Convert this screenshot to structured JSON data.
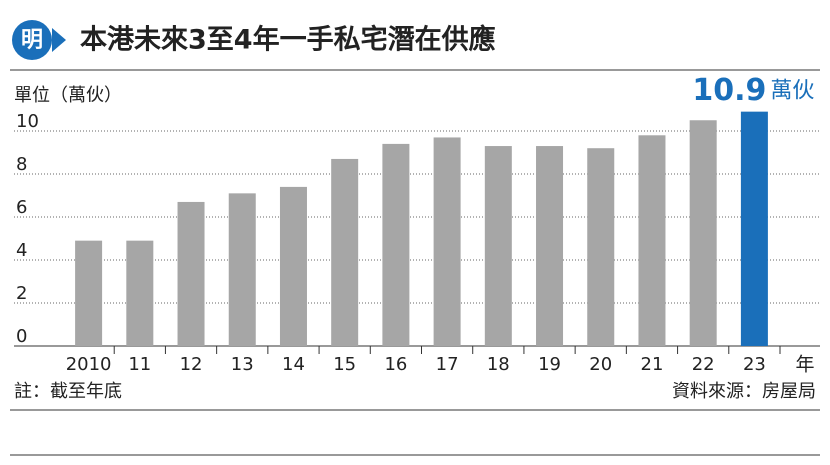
{
  "chart_data": {
    "type": "bar",
    "title": "本港未來3至4年一手私宅潛在供應",
    "logo": "明",
    "y_label": "單位（萬伙）",
    "x_unit": "年",
    "categories": [
      "2010",
      "11",
      "12",
      "13",
      "14",
      "15",
      "16",
      "17",
      "18",
      "19",
      "20",
      "21",
      "22",
      "23"
    ],
    "values": [
      4.9,
      4.9,
      6.7,
      7.1,
      7.4,
      8.7,
      9.4,
      9.7,
      9.3,
      9.3,
      9.2,
      9.8,
      10.5,
      10.9
    ],
    "colors": [
      "#a6a6a6",
      "#a6a6a6",
      "#a6a6a6",
      "#a6a6a6",
      "#a6a6a6",
      "#a6a6a6",
      "#a6a6a6",
      "#a6a6a6",
      "#a6a6a6",
      "#a6a6a6",
      "#a6a6a6",
      "#a6a6a6",
      "#a6a6a6",
      "#1a6fba"
    ],
    "value_labels": [
      null,
      null,
      null,
      null,
      null,
      null,
      null,
      null,
      null,
      null,
      null,
      null,
      null,
      "10.9"
    ],
    "value_label_unit": "萬伙",
    "ylim": [
      0,
      11
    ],
    "yticks": [
      0,
      2,
      4,
      6,
      8,
      10
    ],
    "grid": true,
    "note": "註：截至年底",
    "source": "資料來源：房屋局"
  }
}
